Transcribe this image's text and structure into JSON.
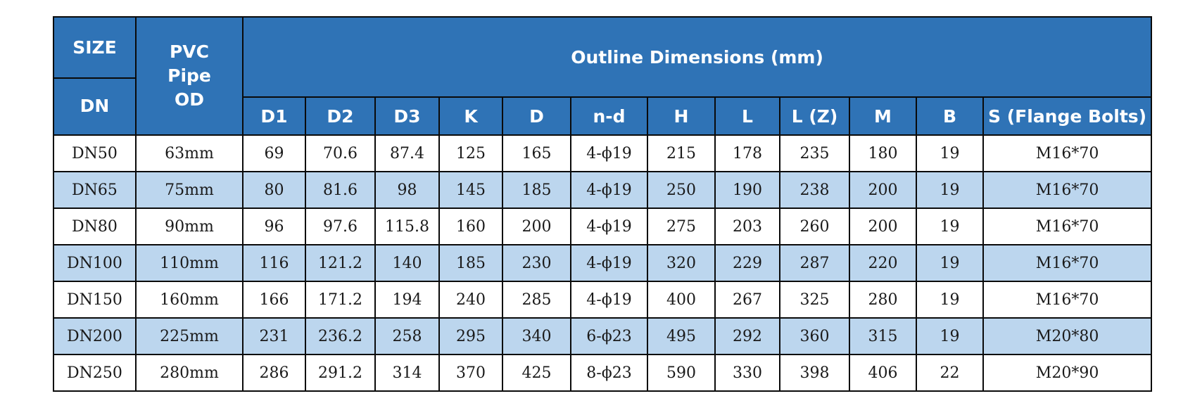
{
  "header": {
    "size": "SIZE",
    "dn": "DN",
    "pvc_od": "PVC Pipe OD",
    "outline": "Outline Dimensions (mm)",
    "columns": [
      "D1",
      "D2",
      "D3",
      "K",
      "D",
      "n-d",
      "H",
      "L",
      "L (Z)",
      "M",
      "B",
      "S (Flange Bolts)"
    ]
  },
  "rows": [
    [
      "DN50",
      "63mm",
      "69",
      "70.6",
      "87.4",
      "125",
      "165",
      "4-ϕ19",
      "215",
      "178",
      "235",
      "180",
      "19",
      "M16*70"
    ],
    [
      "DN65",
      "75mm",
      "80",
      "81.6",
      "98",
      "145",
      "185",
      "4-ϕ19",
      "250",
      "190",
      "238",
      "200",
      "19",
      "M16*70"
    ],
    [
      "DN80",
      "90mm",
      "96",
      "97.6",
      "115.8",
      "160",
      "200",
      "4-ϕ19",
      "275",
      "203",
      "260",
      "200",
      "19",
      "M16*70"
    ],
    [
      "DN100",
      "110mm",
      "116",
      "121.2",
      "140",
      "185",
      "230",
      "4-ϕ19",
      "320",
      "229",
      "287",
      "220",
      "19",
      "M16*70"
    ],
    [
      "DN150",
      "160mm",
      "166",
      "171.2",
      "194",
      "240",
      "285",
      "4-ϕ19",
      "400",
      "267",
      "325",
      "280",
      "19",
      "M16*70"
    ],
    [
      "DN200",
      "225mm",
      "231",
      "236.2",
      "258",
      "295",
      "340",
      "6-ϕ23",
      "495",
      "292",
      "360",
      "315",
      "19",
      "M20*80"
    ],
    [
      "DN250",
      "280mm",
      "286",
      "291.2",
      "314",
      "370",
      "425",
      "8-ϕ23",
      "590",
      "330",
      "398",
      "406",
      "22",
      "M20*90"
    ]
  ],
  "colors": {
    "header_bg": "#2f73b6",
    "alt_row_bg": "#bcd6ee",
    "border": "#0a0a0a"
  }
}
